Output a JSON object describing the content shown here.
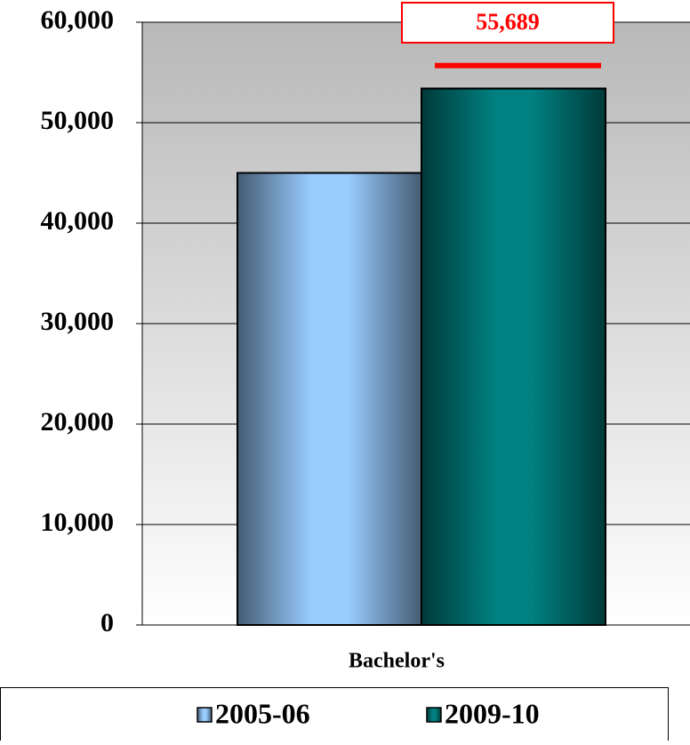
{
  "chart_data": {
    "type": "bar",
    "categories": [
      "Bachelor's"
    ],
    "series": [
      {
        "name": "2005-06",
        "color": "#99ccff",
        "values": [
          45000
        ]
      },
      {
        "name": "2009-10",
        "color": "#008080",
        "values": [
          53400
        ]
      }
    ],
    "ylim": [
      0,
      60000
    ],
    "yticks": [
      0,
      {
        "value": 10000,
        "label": "10,000"
      },
      {
        "value": 20000,
        "label": "20,000"
      },
      {
        "value": 30000,
        "label": "30,000"
      },
      {
        "value": 40000,
        "label": "40,000"
      },
      {
        "value": 50000,
        "label": "50,000"
      },
      {
        "value": 60000,
        "label": "60,000"
      }
    ],
    "grid": true,
    "annotation": {
      "value": 55689,
      "label": "55,689",
      "color": "#ff0000"
    },
    "legend": "bottom"
  }
}
